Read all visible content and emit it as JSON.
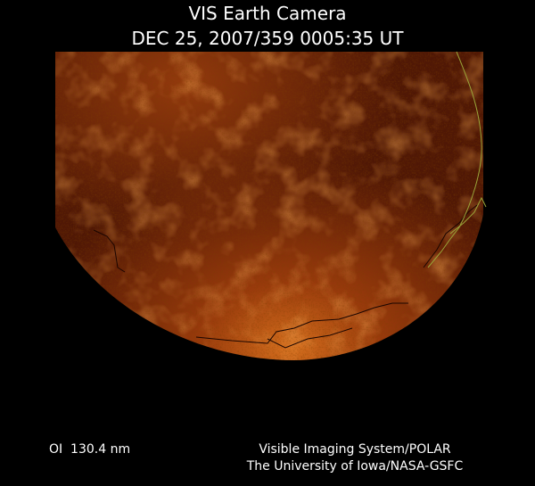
{
  "header": {
    "title": "VIS Earth Camera",
    "timestamp": "DEC 25, 2007/359 0005:35 UT"
  },
  "footer": {
    "wavelength": "OI  130.4 nm",
    "credits": [
      "Visible Imaging System/POLAR",
      "The University of Iowa/NASA-GSFC"
    ]
  }
}
